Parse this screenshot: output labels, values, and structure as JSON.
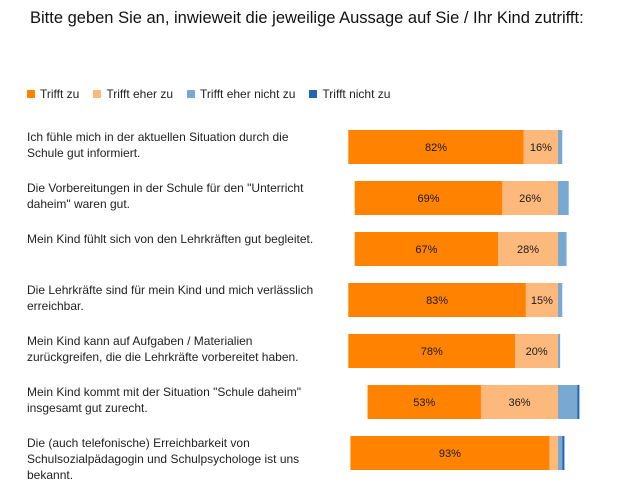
{
  "chart_data": {
    "type": "bar",
    "orientation": "horizontal",
    "stacked": true,
    "title": "Bitte geben Sie an, inwieweit die jeweilige Aussage auf Sie / Ihr Kind zutrifft:",
    "legend_position": "top-left",
    "categories": [
      "Ich fühle mich in der aktuellen Situation durch die Schule gut informiert.",
      "Die Vorbereitungen in der Schule für den \"Unterricht daheim\" waren gut.",
      "Mein Kind fühlt sich von den Lehrkräften gut begleitet.",
      "Die Lehrkräfte sind für mein Kind und mich verlässlich erreichbar.",
      "Mein Kind kann auf Aufgaben / Materialien zurückgreifen, die die Lehrkräfte vorbereitet haben.",
      "Mein Kind kommt mit der Situation \"Schule daheim\" insgesamt gut zurecht.",
      "Die (auch telefonische) Erreichbarkeit von Schulsozialpädagogin und Schulpsychologe ist uns bekannt."
    ],
    "series": [
      {
        "name": "Trifft zu",
        "color": "#ff8200",
        "values": [
          82,
          69,
          67,
          83,
          78,
          53,
          93
        ]
      },
      {
        "name": "Trifft eher zu",
        "color": "#fdb97c",
        "values": [
          16,
          26,
          28,
          15,
          20,
          36,
          4
        ]
      },
      {
        "name": "Trifft eher nicht zu",
        "color": "#79a9d3",
        "values": [
          2,
          5,
          4,
          2,
          1,
          9,
          2
        ]
      },
      {
        "name": "Trifft nicht zu",
        "color": "#1f67b1",
        "values": [
          0,
          0,
          0,
          0,
          0,
          1,
          1
        ]
      }
    ],
    "value_labels": [
      [
        "82%",
        "16%"
      ],
      [
        "69%",
        "26%"
      ],
      [
        "67%",
        "28%"
      ],
      [
        "83%",
        "15%"
      ],
      [
        "78%",
        "20%"
      ],
      [
        "53%",
        "36%"
      ],
      [
        "93%",
        ""
      ]
    ]
  }
}
